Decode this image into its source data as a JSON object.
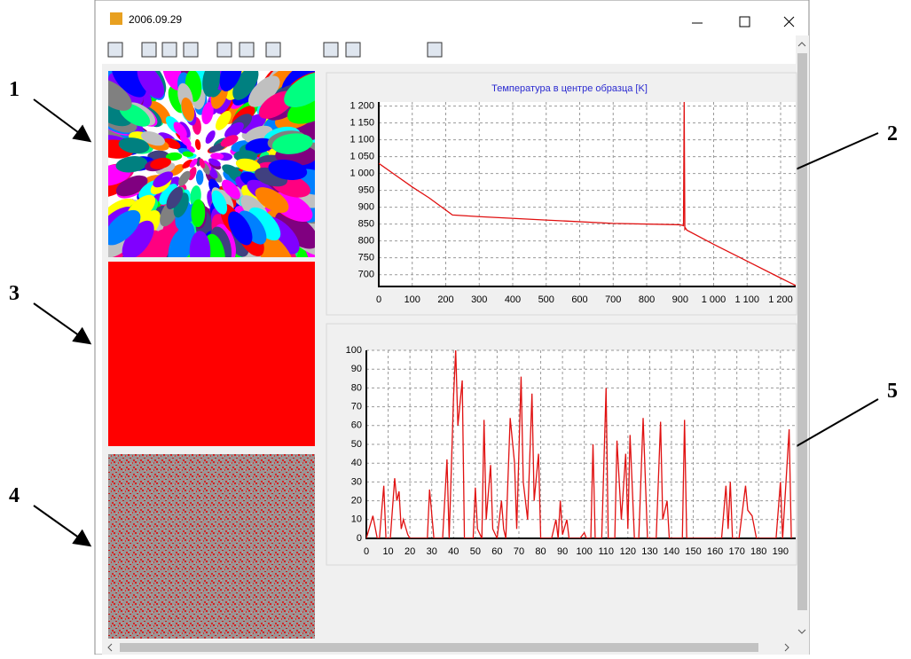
{
  "window": {
    "title": "2006.09.29"
  },
  "callouts": [
    "1",
    "2",
    "3",
    "4",
    "5"
  ],
  "chart_data": [
    {
      "type": "line",
      "title": "Температура в центре образца [K]",
      "color": "#e01010",
      "grid": true,
      "x": [
        0,
        50,
        100,
        150,
        220,
        300,
        500,
        700,
        900,
        910,
        912,
        914,
        916,
        920,
        1000,
        1100,
        1200,
        1245
      ],
      "values": [
        1030,
        995,
        960,
        928,
        877,
        872,
        862,
        852,
        848,
        845,
        1212,
        835,
        838,
        832,
        790,
        740,
        690,
        668
      ],
      "xlim": [
        0,
        1245
      ],
      "xticks": [
        0,
        100,
        200,
        300,
        400,
        500,
        600,
        700,
        800,
        900,
        {
          "value": 1000,
          "label": "1 000"
        },
        {
          "value": 1100,
          "label": "1 100"
        },
        {
          "value": 1200,
          "label": "1 200"
        }
      ],
      "ylim": [
        665,
        1212
      ],
      "yticks": [
        700,
        750,
        800,
        850,
        900,
        950,
        {
          "value": 1000,
          "label": "1 000"
        },
        {
          "value": 1050,
          "label": "1 050"
        },
        {
          "value": 1100,
          "label": "1 100"
        },
        {
          "value": 1150,
          "label": "1 150"
        },
        {
          "value": 1200,
          "label": "1 200"
        }
      ]
    },
    {
      "type": "line",
      "color": "#e01010",
      "grid": true,
      "x": [
        0,
        3,
        5,
        6,
        8,
        9,
        11,
        13,
        14,
        15,
        16,
        17,
        19,
        20,
        28,
        29,
        31,
        35,
        37,
        38,
        40,
        41,
        42,
        44,
        45,
        49,
        50,
        51,
        53,
        54,
        55,
        57,
        58,
        60,
        62,
        63,
        64,
        66,
        68,
        69,
        71,
        72,
        74,
        76,
        77,
        79,
        80,
        85,
        87,
        88,
        89,
        90,
        92,
        93,
        98,
        100,
        101,
        103,
        104,
        105,
        108,
        110,
        111,
        114,
        115,
        117,
        119,
        120,
        121,
        123,
        125,
        127,
        129,
        133,
        135,
        136,
        138,
        139,
        145,
        146,
        147,
        163,
        165,
        166,
        167,
        168,
        171,
        174,
        175,
        177,
        179,
        188,
        190,
        191,
        194,
        195
      ],
      "values": [
        0,
        12,
        0,
        0,
        28,
        0,
        0,
        32,
        20,
        25,
        5,
        10,
        2,
        0,
        0,
        26,
        0,
        0,
        42,
        0,
        75,
        100,
        60,
        84,
        0,
        0,
        27,
        5,
        0,
        63,
        10,
        39,
        5,
        0,
        20,
        5,
        0,
        64,
        40,
        5,
        86,
        30,
        10,
        77,
        20,
        45,
        0,
        0,
        10,
        0,
        20,
        2,
        10,
        0,
        0,
        3,
        0,
        0,
        50,
        0,
        0,
        80,
        0,
        0,
        52,
        10,
        45,
        5,
        55,
        0,
        0,
        64,
        0,
        0,
        62,
        10,
        20,
        0,
        0,
        63,
        0,
        0,
        28,
        5,
        30,
        0,
        0,
        28,
        15,
        12,
        0,
        0,
        30,
        0,
        58,
        0
      ],
      "xlim": [
        0,
        197
      ],
      "xticks": [
        0,
        10,
        20,
        30,
        40,
        50,
        60,
        70,
        80,
        90,
        100,
        110,
        120,
        130,
        140,
        150,
        160,
        170,
        180,
        190
      ],
      "ylim": [
        0,
        100
      ],
      "yticks": [
        0,
        10,
        20,
        30,
        40,
        50,
        60,
        70,
        80,
        90,
        100
      ]
    }
  ]
}
